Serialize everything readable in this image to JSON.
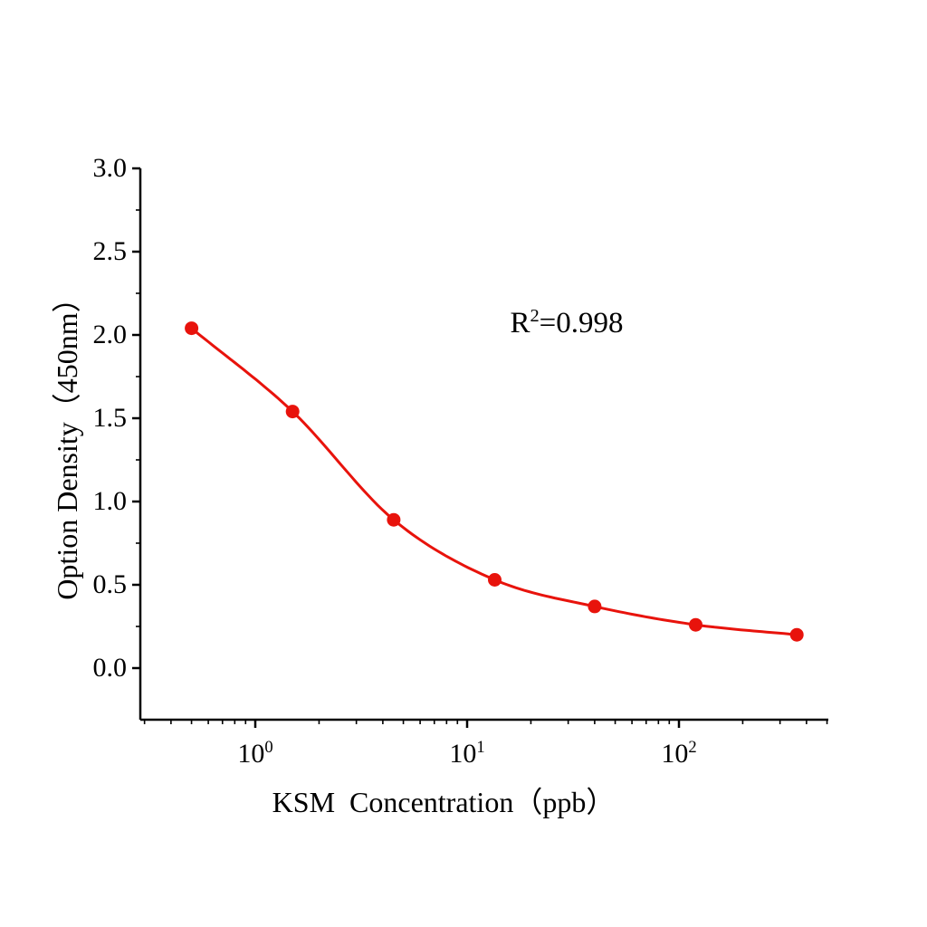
{
  "chart_data": {
    "type": "scatter",
    "title": "",
    "xlabel": "KSM  Concentration（ppb）",
    "ylabel": "Option Density（450nm）",
    "x_scale": "log",
    "x": [
      0.5,
      1.5,
      4.5,
      13.5,
      40,
      120,
      360
    ],
    "y": [
      2.04,
      1.54,
      0.89,
      0.53,
      0.37,
      0.26,
      0.2
    ],
    "fit": "smooth sigmoid curve through points",
    "annotation": {
      "base": "R",
      "sup": "2",
      "rest": "=0.998"
    },
    "xticks": [
      {
        "base": "10",
        "exp": "0",
        "value": 1
      },
      {
        "base": "10",
        "exp": "1",
        "value": 10
      },
      {
        "base": "10",
        "exp": "2",
        "value": 100
      }
    ],
    "yticks": [
      0,
      0.5,
      1,
      1.5,
      2,
      2.5,
      3
    ],
    "ylim": [
      -0.31,
      3.0
    ],
    "xlim": [
      0.29,
      505
    ],
    "legend": null,
    "grid": false,
    "colors": {
      "points": "#e8130c",
      "line": "#e8130c",
      "axis": "#000000",
      "background": "#ffffff"
    }
  }
}
